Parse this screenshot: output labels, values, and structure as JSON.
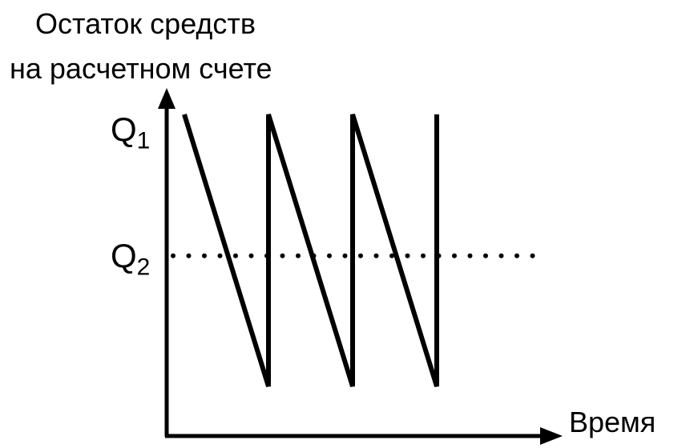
{
  "chart_data": {
    "type": "line",
    "title_line1": "Остаток средств",
    "title_line2": "на расчетном счете",
    "xlabel": "Время",
    "ytick_labels": [
      {
        "label": "Q",
        "sub": "1",
        "value": 1
      },
      {
        "label": "Q",
        "sub": "2",
        "value": 0.48
      }
    ],
    "series": [
      {
        "x": [
          0,
          1,
          1,
          2,
          2,
          3,
          3
        ],
        "y": [
          1,
          0,
          1,
          0,
          1,
          0,
          1
        ],
        "color": "#000000"
      }
    ],
    "reference_line": {
      "y": 0.48,
      "style": "dotted",
      "label": "Q2"
    },
    "grid": false
  }
}
